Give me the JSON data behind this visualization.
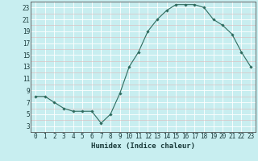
{
  "x": [
    0,
    1,
    2,
    3,
    4,
    5,
    6,
    7,
    8,
    9,
    10,
    11,
    12,
    13,
    14,
    15,
    16,
    17,
    18,
    19,
    20,
    21,
    22,
    23
  ],
  "y": [
    8,
    8,
    7,
    6,
    5.5,
    5.5,
    5.5,
    3.5,
    5,
    8.5,
    13,
    15.5,
    19,
    21,
    22.5,
    23.5,
    23.5,
    23.5,
    23,
    21,
    20,
    18.5,
    15.5,
    13
  ],
  "line_color": "#2e6b5e",
  "marker": "D",
  "marker_size": 1.8,
  "background_color": "#c8eef0",
  "grid_color_major": "#ffffff",
  "grid_color_minor": "#deb8b8",
  "xlabel": "Humidex (Indice chaleur)",
  "xlim": [
    -0.5,
    23.5
  ],
  "ylim": [
    2,
    24
  ],
  "yticks": [
    3,
    5,
    7,
    9,
    11,
    13,
    15,
    17,
    19,
    21,
    23
  ],
  "xticks": [
    0,
    1,
    2,
    3,
    4,
    5,
    6,
    7,
    8,
    9,
    10,
    11,
    12,
    13,
    14,
    15,
    16,
    17,
    18,
    19,
    20,
    21,
    22,
    23
  ],
  "font_size": 5.5,
  "xlabel_fontsize": 6.5
}
